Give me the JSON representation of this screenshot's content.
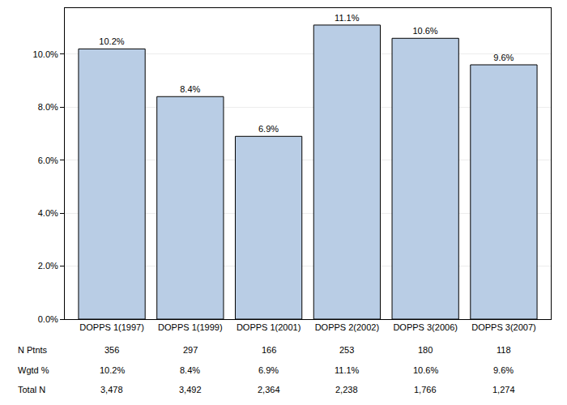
{
  "chart_data": {
    "type": "bar",
    "categories": [
      "DOPPS 1(1997)",
      "DOPPS 1(1999)",
      "DOPPS 1(2001)",
      "DOPPS 2(2002)",
      "DOPPS 3(2006)",
      "DOPPS 3(2007)"
    ],
    "values": [
      10.2,
      8.4,
      6.9,
      11.1,
      10.6,
      9.6
    ],
    "value_labels": [
      "10.2%",
      "8.4%",
      "6.9%",
      "11.1%",
      "10.6%",
      "9.6%"
    ],
    "data_labels": true,
    "color": "#b9cde5",
    "ylim": [
      0,
      11.74
    ],
    "yticks": [
      {
        "value": 0,
        "label": "0.0%"
      },
      {
        "value": 2,
        "label": "2.0%"
      },
      {
        "value": 4,
        "label": "4.0%"
      },
      {
        "value": 6,
        "label": "6.0%"
      },
      {
        "value": 8,
        "label": "8.0%"
      },
      {
        "value": 10,
        "label": "10.0%"
      }
    ],
    "grid": true,
    "table": {
      "rows": [
        {
          "label": "N Ptnts",
          "values": [
            "356",
            "297",
            "166",
            "253",
            "180",
            "118"
          ]
        },
        {
          "label": "Wgtd %",
          "values": [
            "10.2%",
            "8.4%",
            "6.9%",
            "11.1%",
            "10.6%",
            "9.6%"
          ]
        },
        {
          "label": "Total N",
          "values": [
            "3,478",
            "3,492",
            "2,364",
            "2,238",
            "1,766",
            "1,274"
          ]
        }
      ]
    }
  }
}
